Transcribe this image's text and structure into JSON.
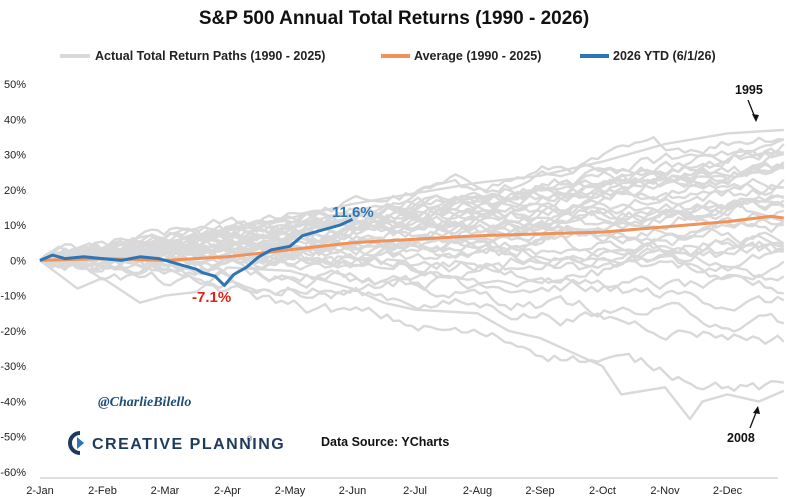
{
  "chart_data": {
    "type": "line",
    "title": "S&P 500 Annual Total Returns (1990 - 2026)",
    "x_ticks": [
      "2-Jan",
      "2-Feb",
      "2-Mar",
      "2-Apr",
      "2-May",
      "2-Jun",
      "2-Jul",
      "2-Aug",
      "2-Sep",
      "2-Oct",
      "2-Nov",
      "2-Dec"
    ],
    "y_ticks": [
      "50%",
      "40%",
      "30%",
      "20%",
      "10%",
      "0%",
      "-10%",
      "-20%",
      "-30%",
      "-40%",
      "-50%",
      "-60%"
    ],
    "ylim": [
      -60,
      50
    ],
    "legend": [
      {
        "label": "Actual Total Return Paths (1990 - 2025)",
        "color": "#d9d9d9"
      },
      {
        "label": "Average (1990 - 2025)",
        "color": "#f0925a"
      },
      {
        "label": "2026 YTD (6/1/26)",
        "color": "#2e75b6"
      }
    ],
    "paths_color": "#d9d9d9",
    "average_color": "#f0925a",
    "ytd_color": "#2e75b6",
    "low_label_color": "#e0201b",
    "historical_final_returns": [
      -3,
      30,
      7,
      10,
      1,
      37,
      23,
      33,
      28,
      21,
      -9,
      -12,
      -22,
      28,
      11,
      5,
      16,
      5,
      -37,
      26,
      15,
      2,
      16,
      32,
      14,
      1,
      12,
      22,
      -4,
      31,
      18,
      28,
      -18,
      26,
      25,
      18
    ],
    "highlight_paths": [
      {
        "label": "1995",
        "points": [
          [
            0,
            0
          ],
          [
            1,
            2
          ],
          [
            2,
            5
          ],
          [
            3,
            9
          ],
          [
            4,
            12
          ],
          [
            5,
            16
          ],
          [
            6,
            19
          ],
          [
            7,
            22
          ],
          [
            8,
            24
          ],
          [
            9,
            28
          ],
          [
            10,
            33
          ],
          [
            11,
            36
          ],
          [
            11.9,
            37
          ]
        ]
      },
      {
        "label": "2008",
        "points": [
          [
            0,
            0
          ],
          [
            0.6,
            -8
          ],
          [
            1,
            -5
          ],
          [
            1.6,
            -12
          ],
          [
            2,
            -10
          ],
          [
            2.5,
            -9
          ],
          [
            3,
            -2
          ],
          [
            4,
            -3
          ],
          [
            5,
            -8
          ],
          [
            5.5,
            -12
          ],
          [
            6,
            -14
          ],
          [
            7,
            -15
          ],
          [
            7.5,
            -20
          ],
          [
            8,
            -22
          ],
          [
            9,
            -30
          ],
          [
            9.3,
            -38
          ],
          [
            10,
            -36
          ],
          [
            10.4,
            -45
          ],
          [
            10.6,
            -40
          ],
          [
            11,
            -38
          ],
          [
            11.5,
            -40
          ],
          [
            11.9,
            -37
          ]
        ]
      }
    ],
    "average": [
      [
        0,
        0
      ],
      [
        1,
        0.5
      ],
      [
        2,
        0
      ],
      [
        3,
        1
      ],
      [
        4,
        3
      ],
      [
        5,
        5
      ],
      [
        6,
        6
      ],
      [
        7,
        7
      ],
      [
        8,
        7.5
      ],
      [
        9,
        8
      ],
      [
        10,
        9.5
      ],
      [
        11,
        11
      ],
      [
        11.7,
        12.5
      ],
      [
        11.9,
        12
      ]
    ],
    "ytd_2026": [
      [
        0,
        0
      ],
      [
        0.2,
        1.5
      ],
      [
        0.4,
        0.5
      ],
      [
        0.7,
        1
      ],
      [
        1,
        0.5
      ],
      [
        1.3,
        0
      ],
      [
        1.6,
        1
      ],
      [
        1.9,
        0.5
      ],
      [
        2.1,
        -0.5
      ],
      [
        2.3,
        -1.5
      ],
      [
        2.5,
        -2.5
      ],
      [
        2.6,
        -3.5
      ],
      [
        2.8,
        -4.5
      ],
      [
        2.95,
        -7.1
      ],
      [
        3.1,
        -4
      ],
      [
        3.3,
        -2
      ],
      [
        3.5,
        1
      ],
      [
        3.7,
        3
      ],
      [
        4,
        4
      ],
      [
        4.2,
        7
      ],
      [
        4.4,
        8
      ],
      [
        4.6,
        9
      ],
      [
        4.8,
        10
      ],
      [
        5,
        11.6
      ]
    ],
    "ytd_high_label": "11.6%",
    "ytd_low_label": "-7.1%",
    "grid": false,
    "legend_position": "top"
  },
  "annotations": {
    "top_year": "1995",
    "bottom_year": "2008"
  },
  "footer": {
    "handle": "@CharlieBilello",
    "brand": "CREATIVE PLANNING",
    "trademark": "®",
    "source": "Data Source: YCharts"
  }
}
